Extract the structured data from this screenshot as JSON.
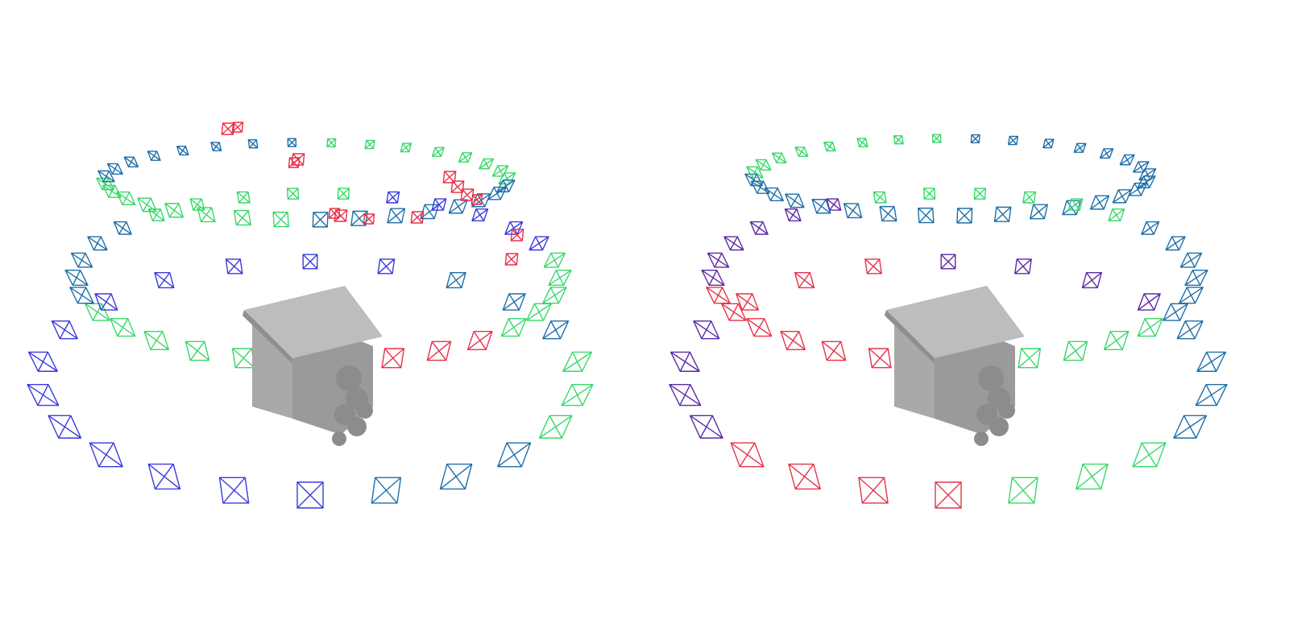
{
  "colors": {
    "blue": "#3a3ae0",
    "green": "#39d86a",
    "red": "#e8324a",
    "teal": "#1f6fa8",
    "purple": "#5b2aa6",
    "model_gray": "#a9a9a9"
  },
  "panels": [
    {
      "id": "left",
      "object": "house-model",
      "rings": [
        {
          "name": "lower-ring",
          "count": 22,
          "color_groups": [
            "blue",
            "blue",
            "blue",
            "blue",
            "teal",
            "green",
            "teal"
          ]
        },
        {
          "name": "middle-ring",
          "count": 30,
          "color_groups": [
            "green",
            "teal",
            "green",
            "blue",
            "green",
            "red"
          ]
        },
        {
          "name": "upper-ring",
          "count": 32,
          "color_groups": [
            "green",
            "teal",
            "green",
            "teal"
          ]
        }
      ],
      "outlier_cameras": 14
    },
    {
      "id": "right",
      "object": "house-model",
      "rings": [
        {
          "name": "lower-ring",
          "count": 22,
          "color_groups": [
            "red",
            "purple",
            "red",
            "purple",
            "teal",
            "green"
          ]
        },
        {
          "name": "middle-ring",
          "count": 30,
          "color_groups": [
            "red",
            "purple",
            "green",
            "teal",
            "green"
          ]
        },
        {
          "name": "upper-ring",
          "count": 32,
          "color_groups": [
            "teal",
            "green",
            "teal",
            "teal"
          ]
        }
      ],
      "outlier_cameras": 0
    }
  ]
}
